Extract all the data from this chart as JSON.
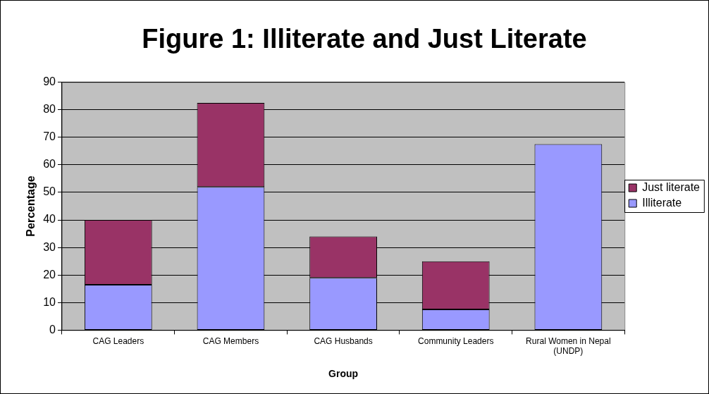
{
  "chart_data": {
    "type": "bar",
    "title": "Figure 1: Illiterate and Just Literate",
    "xlabel": "Group",
    "ylabel": "Percentage",
    "categories": [
      "CAG Leaders",
      "CAG Members",
      "CAG Husbands",
      "Community Leaders",
      "Rural Women in Nepal (UNDP)"
    ],
    "series": [
      {
        "name": "Illiterate",
        "color": "#9999ff",
        "values": [
          16.5,
          52,
          19,
          7.5,
          67.5
        ]
      },
      {
        "name": "Just literate",
        "color": "#993366",
        "values": [
          23.5,
          30.5,
          15,
          17.5,
          null
        ]
      }
    ],
    "stacked": true,
    "ylim": [
      0,
      90
    ],
    "yticks": [
      0,
      10,
      20,
      30,
      40,
      50,
      60,
      70,
      80,
      90
    ],
    "grid": "y",
    "legend": "right"
  }
}
